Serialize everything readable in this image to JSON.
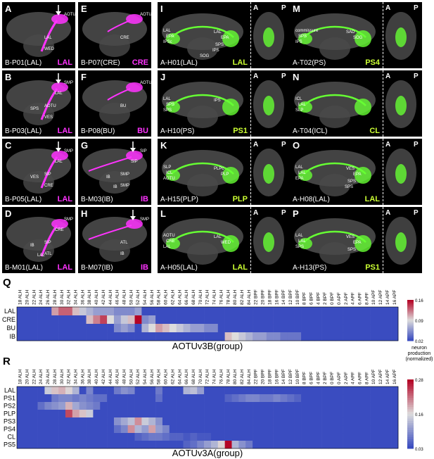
{
  "colors": {
    "magenta": "#ff33ff",
    "green": "#66ff33",
    "lime": "#ccff33",
    "hmLow": "#3a4cc0",
    "hmMid": "#dddcdc",
    "hmHigh": "#b40426"
  },
  "panelsB": [
    {
      "letter": "A",
      "name": "B-P01(LAL)",
      "tag": "LAL",
      "arrow": true,
      "labels": [
        "AOTU",
        "LAL",
        "WED"
      ]
    },
    {
      "letter": "E",
      "name": "B-P07(CRE)",
      "tag": "CRE",
      "arrow": false,
      "labels": [
        "AOTU",
        "CRE"
      ]
    },
    {
      "letter": "B",
      "name": "B-P03(LAL)",
      "tag": "LAL",
      "arrow": true,
      "labels": [
        "SMP",
        "AOTU",
        "VES",
        "LAL",
        "SPS"
      ]
    },
    {
      "letter": "F",
      "name": "B-P08(BU)",
      "tag": "BU",
      "arrow": false,
      "labels": [
        "AOTU",
        "BU"
      ]
    },
    {
      "letter": "C",
      "name": "B-P05(LAL)",
      "tag": "LAL",
      "arrow": true,
      "labels": [
        "SMP",
        "SIP",
        "CRE",
        "LAL",
        "VES"
      ]
    },
    {
      "letter": "G",
      "name": "B-M03(IB)",
      "tag": "IB",
      "arrow": true,
      "labels": [
        "SIP",
        "SMP",
        "SMP",
        "SIP",
        "IB",
        "IB"
      ]
    },
    {
      "letter": "D",
      "name": "B-M01(LAL)",
      "tag": "LAL",
      "arrow": false,
      "labels": [
        "SMP",
        "SIP",
        "ATL",
        "CRE",
        "IB",
        "LAL"
      ]
    },
    {
      "letter": "H",
      "name": "B-M07(IB)",
      "tag": "IB",
      "arrow": true,
      "labels": [
        "SMP",
        "ATL",
        "IB"
      ]
    }
  ],
  "panelsA": [
    {
      "letter": "I",
      "name": "A-H01(LAL)",
      "tag": "LAL",
      "labels": [
        "LAL",
        "EPA",
        "IPSc",
        "LAL",
        "EPA",
        "SPS",
        "IPS",
        "SOG"
      ]
    },
    {
      "letter": "M",
      "name": "A-T02(PS)",
      "tag": "PS4",
      "labels": [
        "commissure",
        "SPS",
        "IPS",
        "SAD",
        "SOG"
      ]
    },
    {
      "letter": "J",
      "name": "A-H10(PS)",
      "tag": "PS1",
      "labels": [
        "LAL",
        "SPS",
        "SPS",
        "IPS"
      ]
    },
    {
      "letter": "N",
      "name": "A-T04(ICL)",
      "tag": "CL",
      "labels": [
        "ICL",
        "LAL",
        "SLP"
      ]
    },
    {
      "letter": "K",
      "name": "A-H15(PLP)",
      "tag": "PLP",
      "labels": [
        "SLP",
        "ICL",
        "AOTU",
        "PLPc",
        "PLP"
      ]
    },
    {
      "letter": "O",
      "name": "A-H08(LAL)",
      "tag": "LAL",
      "labels": [
        "LAL",
        "LAL",
        "EPA",
        "VES",
        "EPA",
        "SPS",
        "SPS"
      ]
    },
    {
      "letter": "L",
      "name": "A-H05(LAL)",
      "tag": "LAL",
      "labels": [
        "AOTU",
        "CRE",
        "LAL",
        "LAL",
        "WED"
      ]
    },
    {
      "letter": "P",
      "name": "A-H13(PS)",
      "tag": "PS1",
      "labels": [
        "LAL",
        "LAL",
        "SPS",
        "VES",
        "EPA",
        "SPS"
      ]
    }
  ],
  "ap": {
    "a": "A",
    "p": "P"
  },
  "heatmapQ": {
    "letter": "Q",
    "title": "AOTUv3B(group)",
    "cbTitle": [
      "neuron",
      "production",
      "(normalized)"
    ],
    "cbTicks": [
      "0.16",
      "0.09",
      "0.02"
    ],
    "vmin": 0.02,
    "vmax": 0.16,
    "rows": [
      "LAL",
      "CRE",
      "BU",
      "IB"
    ],
    "peaks": [
      [
        [
          5,
          0.11
        ],
        [
          6,
          0.13
        ],
        [
          7,
          0.13
        ],
        [
          8,
          0.1
        ],
        [
          9,
          0.08
        ],
        [
          10,
          0.07
        ],
        [
          11,
          0.06
        ],
        [
          12,
          0.06
        ],
        [
          13,
          0.06
        ],
        [
          14,
          0.05
        ],
        [
          15,
          0.05
        ],
        [
          16,
          0.05
        ],
        [
          17,
          0.06
        ]
      ],
      [
        [
          10,
          0.1
        ],
        [
          11,
          0.12
        ],
        [
          12,
          0.14
        ],
        [
          13,
          0.09
        ],
        [
          14,
          0.06
        ],
        [
          15,
          0.08
        ],
        [
          16,
          0.1
        ],
        [
          17,
          0.16
        ],
        [
          18,
          0.05
        ],
        [
          19,
          0.06
        ]
      ],
      [
        [
          14,
          0.05
        ],
        [
          15,
          0.06
        ],
        [
          16,
          0.05
        ],
        [
          18,
          0.07
        ],
        [
          19,
          0.09
        ],
        [
          20,
          0.11
        ],
        [
          21,
          0.1
        ],
        [
          22,
          0.09
        ],
        [
          23,
          0.08
        ],
        [
          24,
          0.07
        ],
        [
          25,
          0.06
        ],
        [
          26,
          0.06
        ],
        [
          27,
          0.05
        ],
        [
          28,
          0.05
        ]
      ],
      [
        [
          30,
          0.1
        ],
        [
          31,
          0.09
        ],
        [
          32,
          0.08
        ],
        [
          33,
          0.07
        ],
        [
          34,
          0.06
        ],
        [
          35,
          0.06
        ],
        [
          36,
          0.05
        ],
        [
          37,
          0.05
        ],
        [
          38,
          0.04
        ],
        [
          39,
          0.04
        ],
        [
          40,
          0.04
        ]
      ]
    ]
  },
  "heatmapR": {
    "letter": "R",
    "title": "AOTUv3A(group)",
    "cbTitle": [
      "neuron",
      "production",
      "(normalized)"
    ],
    "cbTicks": [
      "0.28",
      "0.16",
      "0.03"
    ],
    "vmin": 0.03,
    "vmax": 0.28,
    "rows": [
      "LAL",
      "PS1",
      "PS2",
      "PLP",
      "PS3",
      "PS4",
      "CL",
      "PS5"
    ],
    "peaks": [
      [
        [
          4,
          0.14
        ],
        [
          5,
          0.17
        ],
        [
          6,
          0.18
        ],
        [
          7,
          0.16
        ],
        [
          8,
          0.12
        ],
        [
          10,
          0.08
        ],
        [
          14,
          0.07
        ],
        [
          15,
          0.09
        ],
        [
          16,
          0.08
        ],
        [
          20,
          0.07
        ],
        [
          24,
          0.12
        ],
        [
          25,
          0.13
        ],
        [
          26,
          0.1
        ]
      ],
      [
        [
          5,
          0.07
        ],
        [
          6,
          0.08
        ],
        [
          7,
          0.08
        ],
        [
          8,
          0.07
        ],
        [
          9,
          0.08
        ],
        [
          10,
          0.07
        ],
        [
          11,
          0.06
        ],
        [
          12,
          0.06
        ],
        [
          20,
          0.06
        ],
        [
          30,
          0.05
        ],
        [
          31,
          0.06
        ],
        [
          32,
          0.07
        ],
        [
          33,
          0.08
        ],
        [
          34,
          0.08
        ],
        [
          35,
          0.07
        ],
        [
          36,
          0.07
        ],
        [
          37,
          0.08
        ],
        [
          38,
          0.07
        ],
        [
          39,
          0.06
        ],
        [
          40,
          0.05
        ]
      ],
      [
        [
          3,
          0.06
        ],
        [
          4,
          0.08
        ],
        [
          5,
          0.09
        ],
        [
          6,
          0.1
        ],
        [
          7,
          0.18
        ],
        [
          8,
          0.11
        ],
        [
          9,
          0.09
        ],
        [
          10,
          0.08
        ],
        [
          11,
          0.07
        ]
      ],
      [
        [
          7,
          0.24
        ],
        [
          8,
          0.19
        ],
        [
          9,
          0.17
        ],
        [
          10,
          0.14
        ]
      ],
      [
        [
          14,
          0.09
        ],
        [
          15,
          0.11
        ],
        [
          16,
          0.13
        ],
        [
          17,
          0.2
        ],
        [
          18,
          0.14
        ],
        [
          19,
          0.12
        ],
        [
          20,
          0.09
        ]
      ],
      [
        [
          14,
          0.06
        ],
        [
          15,
          0.08
        ],
        [
          16,
          0.2
        ],
        [
          17,
          0.12
        ],
        [
          18,
          0.1
        ],
        [
          19,
          0.19
        ],
        [
          20,
          0.1
        ],
        [
          21,
          0.08
        ]
      ],
      [
        [
          17,
          0.05
        ],
        [
          18,
          0.06
        ],
        [
          19,
          0.07
        ],
        [
          20,
          0.07
        ],
        [
          21,
          0.06
        ],
        [
          22,
          0.05
        ],
        [
          23,
          0.05
        ],
        [
          24,
          0.04
        ],
        [
          25,
          0.05
        ],
        [
          26,
          0.04
        ],
        [
          27,
          0.04
        ]
      ],
      [
        [
          24,
          0.05
        ],
        [
          25,
          0.06
        ],
        [
          26,
          0.08
        ],
        [
          27,
          0.1
        ],
        [
          28,
          0.12
        ],
        [
          29,
          0.16
        ],
        [
          30,
          0.28
        ],
        [
          31,
          0.12
        ],
        [
          32,
          0.09
        ],
        [
          33,
          0.07
        ]
      ]
    ]
  },
  "stages": [
    "18 ALH",
    "20 ALH",
    "22 ALH",
    "24 ALH",
    "26 ALH",
    "28 ALH",
    "30 ALH",
    "32 ALH",
    "34 ALH",
    "36 ALH",
    "38 ALH",
    "40 ALH",
    "42 ALH",
    "44 ALH",
    "46 ALH",
    "48 ALH",
    "50 ALH",
    "52 ALH",
    "54 ALH",
    "56 ALH",
    "58 ALH",
    "60 ALH",
    "62 ALH",
    "64 ALH",
    "66 ALH",
    "68 ALH",
    "70 ALH",
    "72 ALH",
    "74 ALH",
    "76 ALH",
    "78 ALH",
    "80 ALH",
    "82 ALH",
    "84 ALH",
    "22 BPF",
    "20 BPF",
    "18 BPF",
    "16 BPF",
    "14 BPF",
    "12 BPF",
    "10 BPF",
    "8 BPF",
    "6 BPF",
    "4 BPF",
    "2 BPF",
    "0 BPF",
    "0 APF",
    "2 APF",
    "4 APF",
    "6 APF",
    "8 APF",
    "10 APF",
    "12 APF",
    "14 APF",
    "16 APF"
  ]
}
